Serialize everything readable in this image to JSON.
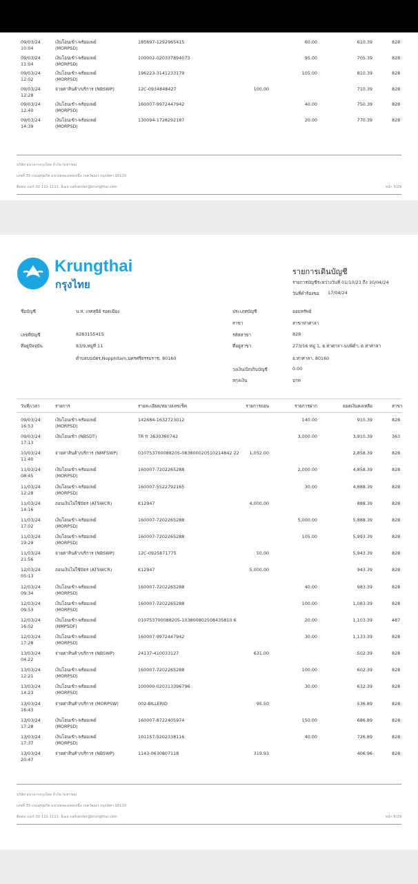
{
  "page_prev": {
    "rows": [
      {
        "date": "09/03/24",
        "time": "10:04",
        "type": "เงินโอนเข้า-พร้อมเพย์",
        "code": "(MORPSD)",
        "detail": "185697-1292965415",
        "withdraw": "",
        "deposit": "60.00",
        "balance": "610.39",
        "branch": "828"
      },
      {
        "date": "09/03/24",
        "time": "11:04",
        "type": "เงินโอนเข้า-พร้อมเพย์",
        "code": "(MORPSD)",
        "detail": "100002-020337894073",
        "withdraw": "",
        "deposit": "95.00",
        "balance": "705.39",
        "branch": "828"
      },
      {
        "date": "09/03/24",
        "time": "12:02",
        "type": "เงินโอนเข้า-พร้อมเพย์",
        "code": "(MORPSD)",
        "detail": "196223-3141233179",
        "withdraw": "",
        "deposit": "105.00",
        "balance": "810.39",
        "branch": "828"
      },
      {
        "date": "09/03/24",
        "time": "12:28",
        "type": "จ่ายค่าสินค้า/บริการ (NBSWP)",
        "code": "",
        "detail": "12C-0934848427",
        "withdraw": "100.00",
        "deposit": "",
        "balance": "710.39",
        "branch": "828"
      },
      {
        "date": "09/03/24",
        "time": "12:40",
        "type": "เงินโอนเข้า-พร้อมเพย์",
        "code": "(MORPSD)",
        "detail": "160007-9972447942",
        "withdraw": "",
        "deposit": "40.00",
        "balance": "750.39",
        "branch": "828"
      },
      {
        "date": "09/03/24",
        "time": "14:39",
        "type": "เงินโอนเข้า-พร้อมเพย์",
        "code": "(MORPSD)",
        "detail": "130094-1728292187",
        "withdraw": "",
        "deposit": "20.00",
        "balance": "770.39",
        "branch": "828"
      }
    ],
    "footer": {
      "line1": "บริษัท ธนาคารกรุงไทย จำกัด (มหาชน)",
      "line2": "เลขที่ 35 ถนนสุขุมวิท แขวงคลองเตยเหนือ เขตวัฒนา กรุงเทพฯ 10110",
      "line3": "ติดต่อ เบอร์ 02-111-1111, อีเมล callcenter@krungthai.com",
      "page": "หน้า 5/29"
    }
  },
  "page": {
    "logo": {
      "en": "Krungthai",
      "th": "กรุงไทย",
      "color": "#1ba5e1"
    },
    "title": "รายการเดินบัญชี",
    "period": "รายการบัญชีระหว่างวันที่ 01/10/23 ถึง 30/04/24",
    "request_label": "วันที่คำร้องขอ",
    "request_date": "17/04/24",
    "account_name_label": "ชื่อบัญชี",
    "account_name": "น.ส. เกศสุนีย์ รอดเมือง",
    "account_no_label": "เลขที่บัญชี",
    "account_no": "8283155415",
    "address_label": "ที่อยู่ปัจจุบัน",
    "address1": "83/9,หมู่ที่ 11",
    "address2": "ตำบลบนบัตร,Nopphitam,นครศรีธรรมราช, 80160",
    "account_type_label": "ประเภทบัญชี",
    "account_type": "ออมทรัพย์",
    "branch_label": "สาขา",
    "branch": "สาขาท่าศาลา",
    "branch_code_label": "รหัสสาขา",
    "branch_code": "828",
    "branch_addr_label": "ที่อยู่สาขา",
    "branch_addr1": "273/16 หมู่ 1, ต.ท่าศาลา-นบพิตำ, ต.ท่าศาลา",
    "branch_addr2": "อ.ท่าศาลา, 80160",
    "overdraft_label": "วงเงินเบิกเกินบัญชี",
    "overdraft": "0.00",
    "currency_label": "สกุลเงิน",
    "currency": "บาท",
    "columns": [
      "วันที่/เวลา",
      "รายการ",
      "รายละเอียด/หมายเลขเช็ค",
      "รายการถอน",
      "รายการฝาก",
      "ยอดเงินคงเหลือ",
      "สาขา"
    ],
    "rows": [
      {
        "date": "09/03/24",
        "time": "16:53",
        "type": "เงินโอนเข้า-พร้อมเพย์",
        "code": "(MORPSD)",
        "detail": "142684-1632723012",
        "withdraw": "",
        "deposit": "140.00",
        "balance": "910.39",
        "branch": "828"
      },
      {
        "date": "09/03/24",
        "time": "17:13",
        "type": "เงินโอนเข้า (NBSDT)",
        "code": "",
        "detail": "TR fr 3630360742",
        "withdraw": "",
        "deposit": "3,000.00",
        "balance": "3,910.39",
        "branch": "363"
      },
      {
        "date": "10/03/24",
        "time": "11:40",
        "type": "จ่ายค่าสินค้า/บริการ (NMFSWP)",
        "code": "",
        "detail": "010753700088205-083800020510214842 22",
        "withdraw": "1,052.00",
        "deposit": "",
        "balance": "2,858.39",
        "branch": "828"
      },
      {
        "date": "11/03/24",
        "time": "08:45",
        "type": "เงินโอนเข้า-พร้อมเพย์",
        "code": "(MORPSD)",
        "detail": "160007-7202265288",
        "withdraw": "",
        "deposit": "2,000.00",
        "balance": "4,858.39",
        "branch": "828"
      },
      {
        "date": "11/03/24",
        "time": "12:28",
        "type": "เงินโอนเข้า-พร้อมเพย์",
        "code": "(MORPSD)",
        "detail": "160007-5522792165",
        "withdraw": "",
        "deposit": "30.00",
        "balance": "4,888.39",
        "branch": "828"
      },
      {
        "date": "11/03/24",
        "time": "14:16",
        "type": "ถอนเงินไม่ใช้บัตร (ATSWCR)",
        "code": "",
        "detail": "K12947",
        "withdraw": "4,000.00",
        "deposit": "",
        "balance": "888.39",
        "branch": "828"
      },
      {
        "date": "11/03/24",
        "time": "17:02",
        "type": "เงินโอนเข้า-พร้อมเพย์",
        "code": "(MORPSD)",
        "detail": "160007-7202265288",
        "withdraw": "",
        "deposit": "5,000.00",
        "balance": "5,888.39",
        "branch": "828"
      },
      {
        "date": "11/03/24",
        "time": "19:29",
        "type": "เงินโอนเข้า-พร้อมเพย์",
        "code": "(MORPSD)",
        "detail": "160007-7202265288",
        "withdraw": "",
        "deposit": "105.00",
        "balance": "5,993.39",
        "branch": "828"
      },
      {
        "date": "11/03/24",
        "time": "21:56",
        "type": "จ่ายค่าสินค้า/บริการ (NBSWP)",
        "code": "",
        "detail": "12C-0925871775",
        "withdraw": "50.00",
        "deposit": "",
        "balance": "5,943.39",
        "branch": "828"
      },
      {
        "date": "12/03/24",
        "time": "05:13",
        "type": "ถอนเงินไม่ใช้บัตร (ATSWCR)",
        "code": "",
        "detail": "K12947",
        "withdraw": "5,000.00",
        "deposit": "",
        "balance": "943.39",
        "branch": "828"
      },
      {
        "date": "12/03/24",
        "time": "09:34",
        "type": "เงินโอนเข้า-พร้อมเพย์",
        "code": "(MORPSD)",
        "detail": "160007-7202265288",
        "withdraw": "",
        "deposit": "40.00",
        "balance": "983.39",
        "branch": "828"
      },
      {
        "date": "12/03/24",
        "time": "09:53",
        "type": "เงินโอนเข้า-พร้อมเพย์",
        "code": "(MORPSD)",
        "detail": "160007-7202265288",
        "withdraw": "",
        "deposit": "100.00",
        "balance": "1,083.39",
        "branch": "828"
      },
      {
        "date": "12/03/24",
        "time": "16:02",
        "type": "เงินโอนเข้า-พร้อมเพย์",
        "code": "(NMPSDF)",
        "detail": "010753700088205-103800802508435810 6",
        "withdraw": "",
        "deposit": "20.00",
        "balance": "1,103.39",
        "branch": "487"
      },
      {
        "date": "12/03/24",
        "time": "17:28",
        "type": "เงินโอนเข้า-พร้อมเพย์",
        "code": "(MORPSD)",
        "detail": "160007-9972447942",
        "withdraw": "",
        "deposit": "30.00",
        "balance": "1,133.39",
        "branch": "828"
      },
      {
        "date": "13/03/24",
        "time": "04:22",
        "type": "จ่ายค่าสินค้า/บริการ (NBSWP)",
        "code": "",
        "detail": "24137-410033127",
        "withdraw": "631.00",
        "deposit": "",
        "balance": "502.39",
        "branch": "828"
      },
      {
        "date": "13/03/24",
        "time": "12:21",
        "type": "เงินโอนเข้า-พร้อมเพย์",
        "code": "(MORPSD)",
        "detail": "160007-7202265288",
        "withdraw": "",
        "deposit": "100.00",
        "balance": "602.39",
        "branch": "828"
      },
      {
        "date": "13/03/24",
        "time": "14:23",
        "type": "เงินโอนเข้า-พร้อมเพย์",
        "code": "(MORPSD)",
        "detail": "100000-020313396796",
        "withdraw": "",
        "deposit": "30.00",
        "balance": "632.39",
        "branch": "828"
      },
      {
        "date": "13/03/24",
        "time": "16:43",
        "type": "จ่ายค่าสินค้า/บริการ (MORPSW)",
        "code": "",
        "detail": "002-BILLERID",
        "withdraw": "95.50",
        "deposit": "",
        "balance": "536.89",
        "branch": "828"
      },
      {
        "date": "13/03/24",
        "time": "17:28",
        "type": "เงินโอนเข้า-พร้อมเพย์",
        "code": "(MORPSD)",
        "detail": "160007-8722405974",
        "withdraw": "",
        "deposit": "150.00",
        "balance": "686.89",
        "branch": "828"
      },
      {
        "date": "13/03/24",
        "time": "17:37",
        "type": "เงินโอนเข้า-พร้อมเพย์",
        "code": "(MORPSD)",
        "detail": "101157-5202338116",
        "withdraw": "",
        "deposit": "40.00",
        "balance": "726.89",
        "branch": "828"
      },
      {
        "date": "13/03/24",
        "time": "20:47",
        "type": "จ่ายค่าสินค้า/บริการ (NBSWP)",
        "code": "",
        "detail": "1143-0630807118",
        "withdraw": "319.93",
        "deposit": "",
        "balance": "406.96",
        "branch": "828"
      }
    ],
    "footer": {
      "line1": "บริษัท ธนาคารกรุงไทย จำกัด (มหาชน)",
      "line2": "เลขที่ 35 ถนนสุขุมวิท แขวงคลองเตยเหนือ เขตวัฒนา กรุงเทพฯ 10110",
      "line3": "ติดต่อ เบอร์ 02-111-1111, อีเมล callcenter@krungthai.com",
      "page": "หน้า 6/29"
    }
  }
}
